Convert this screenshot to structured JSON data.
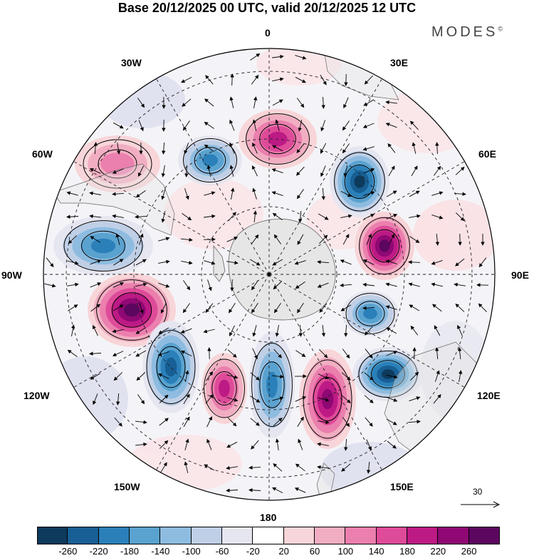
{
  "header": {
    "title": "Base 20/12/2025 00 UTC, valid 20/12/2025 12 UTC",
    "brand": "MODES",
    "brand_mark": "©"
  },
  "map": {
    "projection": "south-polar-stereographic",
    "longitude_labels": {
      "top": "0",
      "top_right": "30E",
      "upper_right": "60E",
      "right": "90E",
      "lower_right": "120E",
      "bottom_right": "150E",
      "bottom": "180",
      "bottom_left": "150W",
      "lower_left": "120W",
      "left": "90W",
      "upper_left": "60W",
      "top_left": "30W"
    },
    "anomaly_centres": [
      {
        "lon_sector": "0",
        "sign": "positive",
        "peak": 180
      },
      {
        "lon_sector": "30W",
        "sign": "negative",
        "peak": -180
      },
      {
        "lon_sector": "45E",
        "sign": "negative",
        "peak": -260
      },
      {
        "lon_sector": "60W",
        "sign": "positive",
        "peak": 100
      },
      {
        "lon_sector": "80E",
        "sign": "positive",
        "peak": 260
      },
      {
        "lon_sector": "90W",
        "sign": "negative",
        "peak": -180
      },
      {
        "lon_sector": "110E",
        "sign": "negative",
        "peak": -180
      },
      {
        "lon_sector": "110W",
        "sign": "positive",
        "peak": 260
      },
      {
        "lon_sector": "130E",
        "sign": "negative",
        "peak": -260
      },
      {
        "lon_sector": "140W",
        "sign": "negative",
        "peak": -220
      },
      {
        "lon_sector": "160W",
        "sign": "positive",
        "peak": 180
      },
      {
        "lon_sector": "180",
        "sign": "negative",
        "peak": -180
      },
      {
        "lon_sector": "160E",
        "sign": "positive",
        "peak": 220
      }
    ],
    "reference_vector": {
      "label": "30"
    }
  },
  "colorbar": {
    "colors": [
      "#0e3a5c",
      "#175f94",
      "#2b80b9",
      "#5aa2cf",
      "#8ebce0",
      "#bfcfe6",
      "#e6e6f1",
      "#ffffff",
      "#f8d5d8",
      "#f1aec2",
      "#eb7fae",
      "#de4b99",
      "#bd1a85",
      "#8f0873",
      "#5c0660"
    ],
    "ticks": [
      "-260",
      "-220",
      "-180",
      "-140",
      "-100",
      "-60",
      "-20",
      "20",
      "60",
      "100",
      "140",
      "180",
      "220",
      "260"
    ]
  }
}
